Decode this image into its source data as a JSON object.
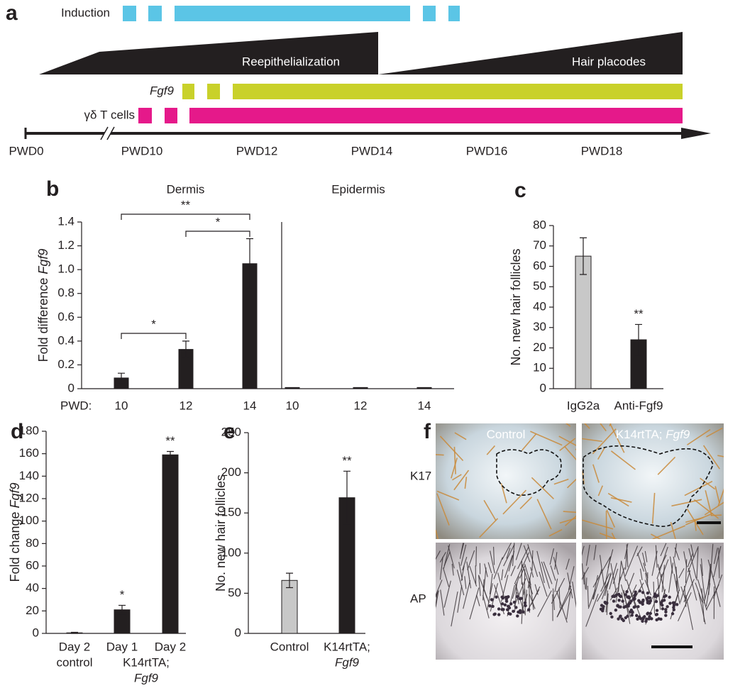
{
  "timeline": {
    "panel_label": "a",
    "rows": [
      {
        "label": "Induction",
        "italic": false,
        "color": "#5bc5e6"
      },
      {
        "label": "Fgf9",
        "italic": true,
        "color": "#c9d12a"
      },
      {
        "label": "γδ T cells",
        "italic": false,
        "color": "#e5198a"
      }
    ],
    "phases": [
      "Reepithelialization",
      "Hair placodes"
    ],
    "phase_color": "#231f20",
    "axis_labels": [
      "PWD0",
      "PWD10",
      "PWD12",
      "PWD14",
      "PWD16",
      "PWD18"
    ]
  },
  "chart_data": [
    {
      "type": "bar",
      "panel_label": "b",
      "groups": [
        "Dermis",
        "Epidermis"
      ],
      "x_prefix": "PWD:",
      "categories": [
        [
          "10"
        ],
        [
          "12"
        ],
        [
          "14"
        ],
        [
          "10"
        ],
        [
          "12"
        ],
        [
          "14"
        ]
      ],
      "category_italic": [
        [
          false
        ],
        [
          false
        ],
        [
          false
        ],
        [
          false
        ],
        [
          false
        ],
        [
          false
        ]
      ],
      "values": [
        0.09,
        0.33,
        1.05,
        0.01,
        0.01,
        0.01
      ],
      "errors": [
        0.04,
        0.07,
        0.21,
        0,
        0,
        0
      ],
      "colors": [
        "#231f20",
        "#231f20",
        "#231f20",
        "#231f20",
        "#231f20",
        "#231f20"
      ],
      "ylabel": [
        "Fold difference ",
        "Fgf9"
      ],
      "ylabel_italic": [
        false,
        true
      ],
      "ylim": [
        0,
        1.4
      ],
      "yticks": [
        0,
        0.2,
        0.4,
        0.6,
        0.8,
        {
          "value": 1,
          "label": "1.0"
        },
        1.2,
        1.4
      ],
      "brackets": [
        {
          "from": 0,
          "to": 2,
          "label": "**"
        },
        {
          "from": 1,
          "to": 2,
          "label": "*"
        },
        {
          "from": 0,
          "to": 1,
          "label": "*"
        }
      ]
    },
    {
      "type": "bar",
      "panel_label": "c",
      "categories": [
        [
          "IgG2a"
        ],
        [
          "Anti-Fgf9"
        ]
      ],
      "category_italic": [
        [
          false
        ],
        [
          false
        ]
      ],
      "values": [
        65,
        24
      ],
      "errors": [
        9,
        7.5
      ],
      "colors": [
        "#c8c8c8",
        "#231f20"
      ],
      "ylabel": [
        "No. new hair follicles"
      ],
      "ylabel_italic": [
        false
      ],
      "ylim": [
        0,
        80
      ],
      "yticks": [
        0,
        10,
        20,
        30,
        40,
        50,
        60,
        70,
        80
      ],
      "significance": [
        null,
        "**"
      ]
    },
    {
      "type": "bar",
      "panel_label": "d",
      "categories": [
        [
          "Day 2",
          "control"
        ],
        [
          "Day 1"
        ],
        [
          "Day 2"
        ]
      ],
      "category_italic": [
        [
          false,
          false
        ],
        [
          false
        ],
        [
          false
        ]
      ],
      "group_label": [
        "K14rtTA;",
        "Fgf9"
      ],
      "group_label_italic": [
        false,
        true
      ],
      "values": [
        0.5,
        21,
        159
      ],
      "errors": [
        0.5,
        4,
        3
      ],
      "colors": [
        "#231f20",
        "#231f20",
        "#231f20"
      ],
      "ylabel": [
        "Fold change ",
        "Fgf9"
      ],
      "ylabel_italic": [
        false,
        true
      ],
      "ylim": [
        0,
        180
      ],
      "yticks": [
        0,
        20,
        40,
        60,
        80,
        100,
        120,
        140,
        160,
        180
      ],
      "significance": [
        null,
        "*",
        "**"
      ]
    },
    {
      "type": "bar",
      "panel_label": "e",
      "categories": [
        [
          "Control"
        ],
        [
          "K14rtTA;",
          "Fgf9"
        ]
      ],
      "category_italic": [
        [
          false
        ],
        [
          false,
          true
        ]
      ],
      "values": [
        66,
        169
      ],
      "errors": [
        9,
        33
      ],
      "colors": [
        "#c8c8c8",
        "#231f20"
      ],
      "ylabel": [
        "No. new hair follicles"
      ],
      "ylabel_italic": [
        false
      ],
      "ylim": [
        0,
        250
      ],
      "yticks": [
        0,
        50,
        100,
        150,
        200,
        250
      ],
      "significance": [
        null,
        "**"
      ]
    }
  ],
  "images": {
    "panel_label": "f",
    "columns": [
      [
        "Control"
      ],
      [
        "K14rtTA; ",
        "Fgf9"
      ]
    ],
    "column_italic": [
      [
        false
      ],
      [
        false,
        true
      ]
    ],
    "rows": [
      "K17",
      "AP"
    ]
  }
}
